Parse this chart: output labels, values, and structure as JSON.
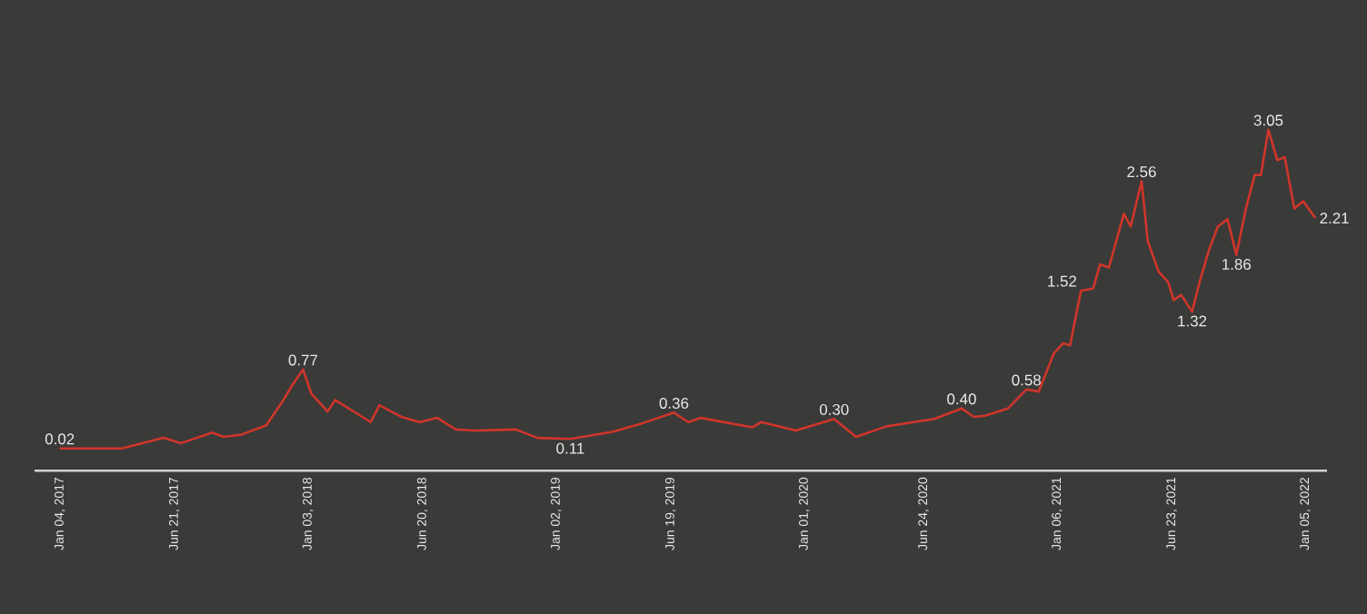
{
  "chart_data": {
    "type": "line",
    "x": [
      "2017-01-04",
      "2017-04-05",
      "2017-06-05",
      "2017-07-01",
      "2017-08-16",
      "2017-09-01",
      "2017-09-27",
      "2017-11-03",
      "2017-11-29",
      "2017-12-12",
      "2017-12-27",
      "2018-01-08",
      "2018-02-01",
      "2018-02-12",
      "2018-04-05",
      "2018-04-18",
      "2018-05-20",
      "2018-06-16",
      "2018-07-12",
      "2018-08-08",
      "2018-09-04",
      "2018-11-04",
      "2018-12-06",
      "2019-01-23",
      "2019-03-27",
      "2019-05-09",
      "2019-06-24",
      "2019-07-15",
      "2019-08-03",
      "2019-10-17",
      "2019-10-30",
      "2019-12-20",
      "2020-02-14",
      "2020-03-17",
      "2020-05-01",
      "2020-07-10",
      "2020-08-19",
      "2020-09-06",
      "2020-09-22",
      "2020-10-26",
      "2020-11-22",
      "2020-12-10",
      "2021-01-01",
      "2021-01-15",
      "2021-01-25",
      "2021-02-10",
      "2021-02-28",
      "2021-03-10",
      "2021-03-23",
      "2021-04-14",
      "2021-04-24",
      "2021-05-10",
      "2021-05-19",
      "2021-06-04",
      "2021-06-18",
      "2021-06-26",
      "2021-07-07",
      "2021-07-23",
      "2021-08-03",
      "2021-08-17",
      "2021-08-30",
      "2021-09-13",
      "2021-09-26",
      "2021-10-10",
      "2021-10-23",
      "2021-11-01",
      "2021-11-12",
      "2021-11-25",
      "2021-12-06",
      "2021-12-20",
      "2022-01-02",
      "2022-01-20"
    ],
    "series": [
      {
        "color": "#d0352a",
        "values": [
          0.02,
          0.02,
          0.12,
          0.07,
          0.17,
          0.13,
          0.15,
          0.24,
          0.49,
          0.63,
          0.77,
          0.54,
          0.37,
          0.48,
          0.27,
          0.43,
          0.32,
          0.27,
          0.31,
          0.2,
          0.19,
          0.2,
          0.12,
          0.11,
          0.18,
          0.26,
          0.36,
          0.27,
          0.31,
          0.22,
          0.27,
          0.19,
          0.3,
          0.13,
          0.23,
          0.3,
          0.4,
          0.32,
          0.33,
          0.4,
          0.58,
          0.56,
          0.92,
          1.02,
          1.0,
          1.52,
          1.54,
          1.77,
          1.74,
          2.25,
          2.13,
          2.56,
          1.99,
          1.7,
          1.6,
          1.43,
          1.48,
          1.32,
          1.6,
          1.91,
          2.13,
          2.2,
          1.86,
          2.3,
          2.62,
          2.62,
          3.05,
          2.76,
          2.79,
          2.3,
          2.37,
          2.21
        ],
        "value_labels": [
          "0.02",
          null,
          null,
          null,
          null,
          null,
          null,
          null,
          null,
          null,
          "0.77",
          null,
          null,
          null,
          null,
          null,
          null,
          null,
          null,
          null,
          null,
          null,
          null,
          "0.11",
          null,
          null,
          "0.36",
          null,
          null,
          null,
          null,
          null,
          "0.30",
          null,
          null,
          null,
          "0.40",
          null,
          null,
          null,
          "0.58",
          null,
          null,
          null,
          null,
          "1.52",
          null,
          null,
          null,
          null,
          null,
          "2.56",
          null,
          null,
          null,
          null,
          null,
          "1.32",
          null,
          null,
          null,
          null,
          "1.86",
          null,
          null,
          null,
          "3.05",
          null,
          null,
          null,
          null,
          "2.21"
        ]
      }
    ],
    "xlim": [
      "2016-11-28",
      "2022-02-06"
    ],
    "xticks": [
      {
        "value": "2017-01-04",
        "label": "Jan 04, 2017"
      },
      {
        "value": "2017-06-21",
        "label": "Jun 21, 2017"
      },
      {
        "value": "2018-01-03",
        "label": "Jan 03, 2018"
      },
      {
        "value": "2018-06-20",
        "label": "Jun 20, 2018"
      },
      {
        "value": "2019-01-02",
        "label": "Jan 02, 2019"
      },
      {
        "value": "2019-06-19",
        "label": "Jun 19, 2019"
      },
      {
        "value": "2020-01-01",
        "label": "Jan 01, 2020"
      },
      {
        "value": "2020-06-24",
        "label": "Jun 24, 2020"
      },
      {
        "value": "2021-01-06",
        "label": "Jan 06, 2021"
      },
      {
        "value": "2021-06-23",
        "label": "Jun 23, 2021"
      },
      {
        "value": "2022-01-05",
        "label": "Jan 05, 2022"
      }
    ],
    "marker": "none",
    "line_style": "solid"
  }
}
